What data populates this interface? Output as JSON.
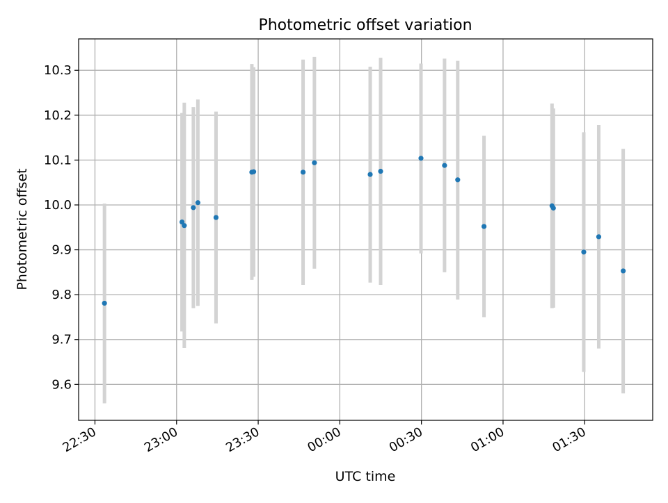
{
  "chart_data": {
    "type": "scatter",
    "title": "Photometric offset variation",
    "xlabel": "UTC time",
    "ylabel": "Photometric offset",
    "grid": true,
    "legend": "none",
    "colors": {
      "marker": "#1f77b4",
      "errorbar": "#d3d3d3",
      "grid": "#b0b0b0"
    },
    "xlim": [
      "2000-01-01T22:24:00",
      "2000-01-02T01:55:00"
    ],
    "ylim": [
      9.52,
      10.37
    ],
    "x_ticks": [
      {
        "time": "2000-01-01T22:30:00",
        "label": "22:30"
      },
      {
        "time": "2000-01-01T23:00:00",
        "label": "23:00"
      },
      {
        "time": "2000-01-01T23:30:00",
        "label": "23:30"
      },
      {
        "time": "2000-01-02T00:00:00",
        "label": "00:00"
      },
      {
        "time": "2000-01-02T00:30:00",
        "label": "00:30"
      },
      {
        "time": "2000-01-02T01:00:00",
        "label": "01:00"
      },
      {
        "time": "2000-01-02T01:30:00",
        "label": "01:30"
      }
    ],
    "y_ticks": [
      {
        "value": 9.6,
        "label": "9.6"
      },
      {
        "value": 9.7,
        "label": "9.7"
      },
      {
        "value": 9.8,
        "label": "9.8"
      },
      {
        "value": 9.9,
        "label": "9.9"
      },
      {
        "value": 10.0,
        "label": "10.0"
      },
      {
        "value": 10.1,
        "label": "10.1"
      },
      {
        "value": 10.2,
        "label": "10.2"
      },
      {
        "value": 10.3,
        "label": "10.3"
      }
    ],
    "points": [
      {
        "time": "2000-01-01T22:33:30",
        "y": 9.781,
        "lo": 9.558,
        "hi": 10.003
      },
      {
        "time": "2000-01-01T23:02:00",
        "y": 9.962,
        "lo": 9.718,
        "hi": 10.205
      },
      {
        "time": "2000-01-01T23:02:50",
        "y": 9.954,
        "lo": 9.681,
        "hi": 10.228
      },
      {
        "time": "2000-01-01T23:06:10",
        "y": 9.994,
        "lo": 9.77,
        "hi": 10.218
      },
      {
        "time": "2000-01-01T23:07:50",
        "y": 10.005,
        "lo": 9.775,
        "hi": 10.235
      },
      {
        "time": "2000-01-01T23:14:30",
        "y": 9.972,
        "lo": 9.736,
        "hi": 10.208
      },
      {
        "time": "2000-01-01T23:27:40",
        "y": 10.073,
        "lo": 9.833,
        "hi": 10.314
      },
      {
        "time": "2000-01-01T23:28:20",
        "y": 10.074,
        "lo": 9.84,
        "hi": 10.307
      },
      {
        "time": "2000-01-01T23:46:30",
        "y": 10.073,
        "lo": 9.822,
        "hi": 10.324
      },
      {
        "time": "2000-01-01T23:50:40",
        "y": 10.094,
        "lo": 9.858,
        "hi": 10.33
      },
      {
        "time": "2000-01-02T00:11:10",
        "y": 10.068,
        "lo": 9.827,
        "hi": 10.308
      },
      {
        "time": "2000-01-02T00:15:00",
        "y": 10.075,
        "lo": 9.822,
        "hi": 10.328
      },
      {
        "time": "2000-01-02T00:29:50",
        "y": 10.104,
        "lo": 9.892,
        "hi": 10.315
      },
      {
        "time": "2000-01-02T00:38:30",
        "y": 10.088,
        "lo": 9.85,
        "hi": 10.326
      },
      {
        "time": "2000-01-02T00:43:20",
        "y": 10.056,
        "lo": 9.789,
        "hi": 10.321
      },
      {
        "time": "2000-01-02T00:53:00",
        "y": 9.952,
        "lo": 9.75,
        "hi": 10.154
      },
      {
        "time": "2000-01-02T01:18:00",
        "y": 9.998,
        "lo": 9.77,
        "hi": 10.226
      },
      {
        "time": "2000-01-02T01:18:30",
        "y": 9.993,
        "lo": 9.771,
        "hi": 10.215
      },
      {
        "time": "2000-01-02T01:29:40",
        "y": 9.895,
        "lo": 9.628,
        "hi": 10.162
      },
      {
        "time": "2000-01-02T01:35:10",
        "y": 9.929,
        "lo": 9.68,
        "hi": 10.178
      },
      {
        "time": "2000-01-02T01:44:10",
        "y": 9.853,
        "lo": 9.58,
        "hi": 10.125
      }
    ]
  }
}
